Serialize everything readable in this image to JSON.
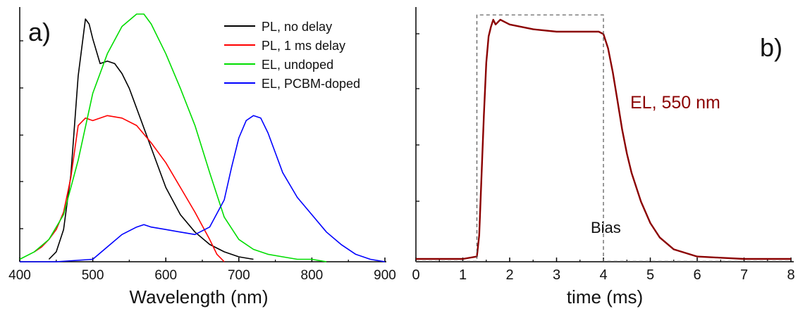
{
  "chart_data": [
    {
      "type": "line",
      "panel_label": "a)",
      "xlabel": "Wavelength (nm)",
      "ylabel": "",
      "xlim": [
        400,
        900
      ],
      "ylim": [
        0,
        1.0
      ],
      "xticks": [
        "400",
        "500",
        "600",
        "700",
        "800",
        "900"
      ],
      "x_tick_values": [
        400,
        500,
        600,
        700,
        800,
        900
      ],
      "grid": false,
      "legend_position": "top-right",
      "series": [
        {
          "name": "PL, no delay",
          "color": "#000000",
          "x": [
            440,
            450,
            460,
            470,
            480,
            490,
            495,
            500,
            510,
            520,
            530,
            540,
            550,
            560,
            580,
            600,
            620,
            640,
            660,
            680,
            700,
            720
          ],
          "y": [
            0.01,
            0.04,
            0.13,
            0.35,
            0.75,
            0.98,
            0.96,
            0.9,
            0.8,
            0.81,
            0.8,
            0.76,
            0.7,
            0.62,
            0.46,
            0.3,
            0.19,
            0.12,
            0.07,
            0.04,
            0.02,
            0.01
          ]
        },
        {
          "name": "PL, 1 ms delay",
          "color": "#ff0000",
          "x": [
            420,
            430,
            440,
            450,
            460,
            470,
            480,
            490,
            500,
            520,
            540,
            560,
            580,
            600,
            620,
            640,
            660,
            670,
            680
          ],
          "y": [
            0.04,
            0.06,
            0.09,
            0.13,
            0.2,
            0.34,
            0.55,
            0.58,
            0.57,
            0.59,
            0.58,
            0.55,
            0.48,
            0.4,
            0.3,
            0.2,
            0.09,
            0.03,
            0.0
          ]
        },
        {
          "name": "EL, undoped",
          "color": "#00dd00",
          "x": [
            400,
            420,
            440,
            460,
            480,
            500,
            520,
            540,
            560,
            570,
            580,
            600,
            620,
            640,
            660,
            680,
            700,
            720,
            740,
            760,
            780,
            800,
            820
          ],
          "y": [
            0.01,
            0.04,
            0.09,
            0.19,
            0.41,
            0.68,
            0.84,
            0.95,
            1.0,
            1.0,
            0.96,
            0.84,
            0.7,
            0.55,
            0.36,
            0.18,
            0.09,
            0.05,
            0.03,
            0.02,
            0.01,
            0.01,
            0.0
          ]
        },
        {
          "name": "EL, PCBM-doped",
          "color": "#0000ff",
          "x": [
            400,
            450,
            500,
            520,
            540,
            560,
            570,
            580,
            600,
            620,
            640,
            660,
            680,
            690,
            700,
            710,
            720,
            730,
            740,
            750,
            760,
            780,
            800,
            820,
            840,
            860,
            880,
            900
          ],
          "y": [
            0.0,
            0.0,
            0.01,
            0.06,
            0.11,
            0.14,
            0.15,
            0.14,
            0.13,
            0.12,
            0.11,
            0.14,
            0.25,
            0.38,
            0.5,
            0.57,
            0.59,
            0.58,
            0.52,
            0.44,
            0.36,
            0.26,
            0.19,
            0.12,
            0.07,
            0.03,
            0.01,
            0.0
          ]
        }
      ]
    },
    {
      "type": "line",
      "panel_label": "b)",
      "xlabel": "time (ms)",
      "ylabel": "",
      "xlim": [
        0,
        8
      ],
      "ylim": [
        0,
        1.0
      ],
      "xticks": [
        "0",
        "1",
        "2",
        "3",
        "4",
        "5",
        "6",
        "7",
        "8"
      ],
      "x_tick_values": [
        0,
        1,
        2,
        3,
        4,
        5,
        6,
        7,
        8
      ],
      "grid": false,
      "series": [
        {
          "name": "EL, 550 nm",
          "color": "#8b0000",
          "x": [
            0,
            0.5,
            1.0,
            1.3,
            1.35,
            1.4,
            1.45,
            1.5,
            1.55,
            1.6,
            1.65,
            1.7,
            1.8,
            1.9,
            2.0,
            2.5,
            3.0,
            3.5,
            3.9,
            4.0,
            4.1,
            4.2,
            4.3,
            4.4,
            4.5,
            4.6,
            4.8,
            5.0,
            5.2,
            5.5,
            6.0,
            6.5,
            7.0,
            7.5,
            8.0
          ],
          "y": [
            0.0,
            0.0,
            0.0,
            0.01,
            0.1,
            0.35,
            0.6,
            0.82,
            0.93,
            0.97,
            1.0,
            0.98,
            1.0,
            0.99,
            0.98,
            0.96,
            0.95,
            0.95,
            0.95,
            0.94,
            0.88,
            0.78,
            0.66,
            0.54,
            0.44,
            0.36,
            0.24,
            0.15,
            0.09,
            0.04,
            0.01,
            0.005,
            0.0,
            0.0,
            0.0
          ]
        },
        {
          "name": "Bias",
          "color": "#555555",
          "style": "dashed",
          "x": [
            0,
            1.3,
            1.3,
            4.0,
            4.0,
            8.0
          ],
          "y": [
            -0.01,
            -0.01,
            1.02,
            1.02,
            -0.01,
            -0.01
          ]
        }
      ],
      "annotations": [
        "EL, 550 nm",
        "Bias"
      ]
    }
  ]
}
